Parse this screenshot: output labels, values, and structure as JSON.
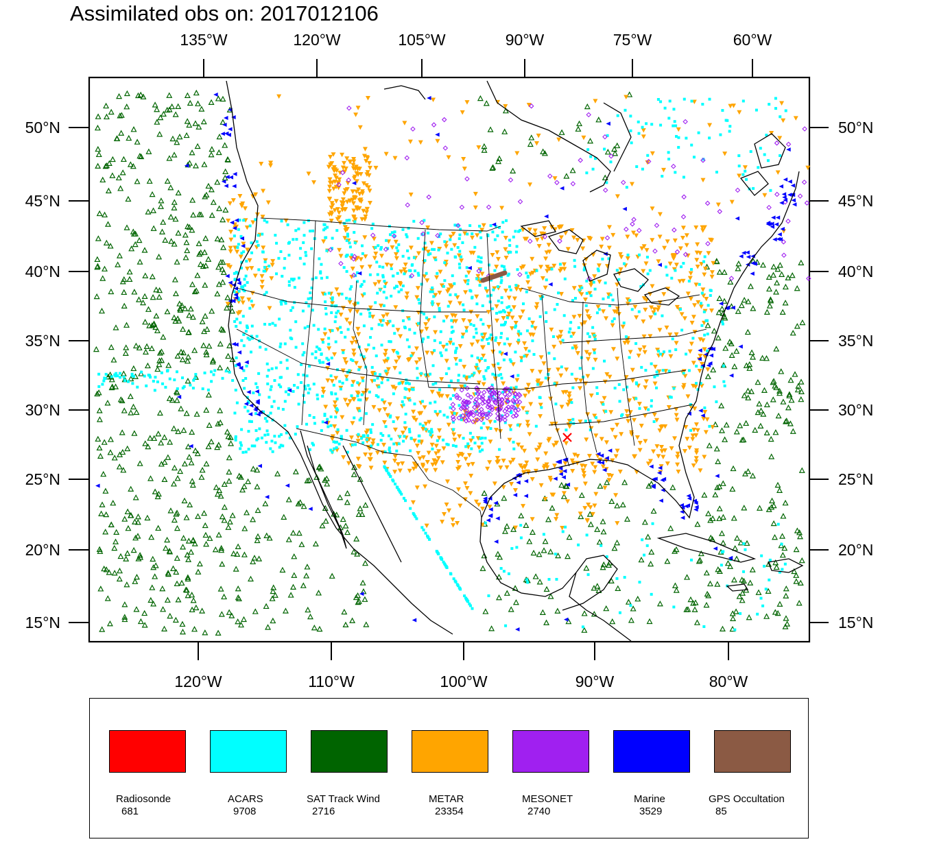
{
  "title": "Assimilated obs on: 2017012106",
  "map": {
    "top_axis": {
      "tick_labels": [
        "135°W",
        "120°W",
        "105°W",
        "90°W",
        "75°W",
        "60°W"
      ]
    },
    "bottom_axis": {
      "tick_labels": [
        "120°W",
        "110°W",
        "100°W",
        "90°W",
        "80°W"
      ]
    },
    "left_axis": {
      "tick_labels": [
        "50°N",
        "45°N",
        "40°N",
        "35°N",
        "30°N",
        "25°N",
        "20°N",
        "15°N"
      ]
    },
    "right_axis": {
      "tick_labels": [
        "50°N",
        "45°N",
        "40°N",
        "35°N",
        "30°N",
        "25°N",
        "20°N",
        "15°N"
      ]
    },
    "region": "Contiguous United States, Mexico, Gulf of Mexico, Caribbean, eastern Pacific and western Atlantic"
  },
  "legend": {
    "items": [
      {
        "name": "Radiosonde",
        "count": "681",
        "color": "#ff0000",
        "symbol": "cross"
      },
      {
        "name": "ACARS",
        "count": "9708",
        "color": "#00ffff",
        "symbol": "square"
      },
      {
        "name": "SAT Track Wind",
        "count": "2716",
        "color": "#006400",
        "symbol": "triangle-up"
      },
      {
        "name": "METAR",
        "count": "23354",
        "color": "#ffa500",
        "symbol": "triangle-down"
      },
      {
        "name": "MESONET",
        "count": "2740",
        "color": "#a020f0",
        "symbol": "diamond"
      },
      {
        "name": "Marine",
        "count": "3529",
        "color": "#0000ff",
        "symbol": "triangle-left"
      },
      {
        "name": "GPS Occultation",
        "count": "85",
        "color": "#8b5a44",
        "symbol": "segment"
      }
    ]
  }
}
